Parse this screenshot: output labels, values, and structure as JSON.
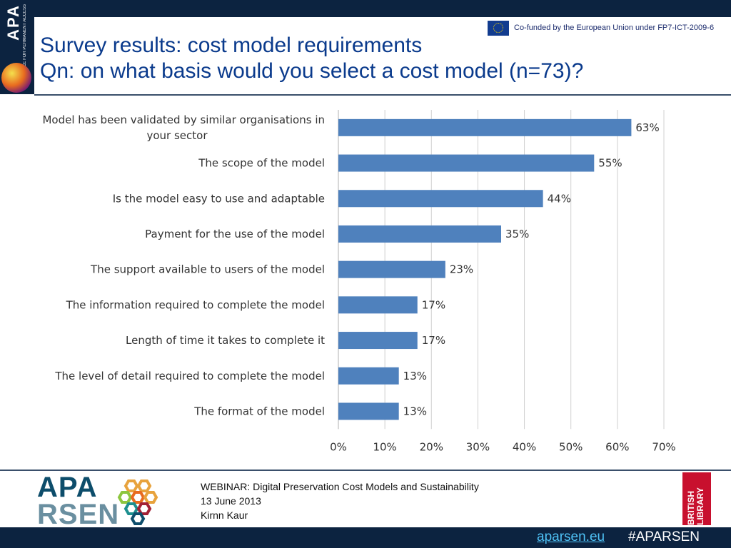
{
  "header": {
    "cofunded": "Co-funded by the European Union under FP7-ICT-2009-6",
    "title_line1": "Survey results: cost model requirements",
    "title_line2": "Qn: on what basis would you select a cost model (n=73)?",
    "logo_text": "APA",
    "logo_subtext": "ALLIANCE FOR PERMANENT ACCESS"
  },
  "chart_data": {
    "type": "bar",
    "orientation": "horizontal",
    "categories": [
      "Model has been validated by similar organisations in your sector",
      "The scope of the model",
      "Is the model easy to use and adaptable",
      "Payment for the use of the model",
      "The support available to users of the model",
      "The information required to complete the model",
      "Length of time it takes to complete it",
      "The level of detail required to complete the model",
      "The format of the model"
    ],
    "category_lines": [
      [
        "Model has been validated by similar organisations in",
        "your sector"
      ],
      [
        "The scope of the model"
      ],
      [
        "Is the model easy to use and adaptable"
      ],
      [
        "Payment for the use of the model"
      ],
      [
        "The support available to users of the model"
      ],
      [
        "The information required to complete the model"
      ],
      [
        "Length of time it takes to complete it"
      ],
      [
        "The level of detail required to complete the model"
      ],
      [
        "The format of the model"
      ]
    ],
    "values": [
      63,
      55,
      44,
      35,
      23,
      17,
      17,
      13,
      13
    ],
    "data_labels": [
      "63%",
      "55%",
      "44%",
      "35%",
      "23%",
      "17%",
      "17%",
      "13%",
      "13%"
    ],
    "xlim": [
      0,
      70
    ],
    "xticks": [
      "0%",
      "10%",
      "20%",
      "30%",
      "40%",
      "50%",
      "60%",
      "70%"
    ],
    "grid": true,
    "bar_color": "#4f81bd",
    "title": "",
    "xlabel": "",
    "ylabel": ""
  },
  "footer": {
    "logo_apa": "APA",
    "logo_rsen": "RSEN",
    "webinar": "WEBINAR: Digital Preservation Cost Models and Sustainability",
    "date": "13 June 2013",
    "presenter": "Kirnn Kaur",
    "bl_logo": "BRITISH LIBRARY",
    "url": "aparsen.eu",
    "hashtag": "#APARSEN"
  }
}
